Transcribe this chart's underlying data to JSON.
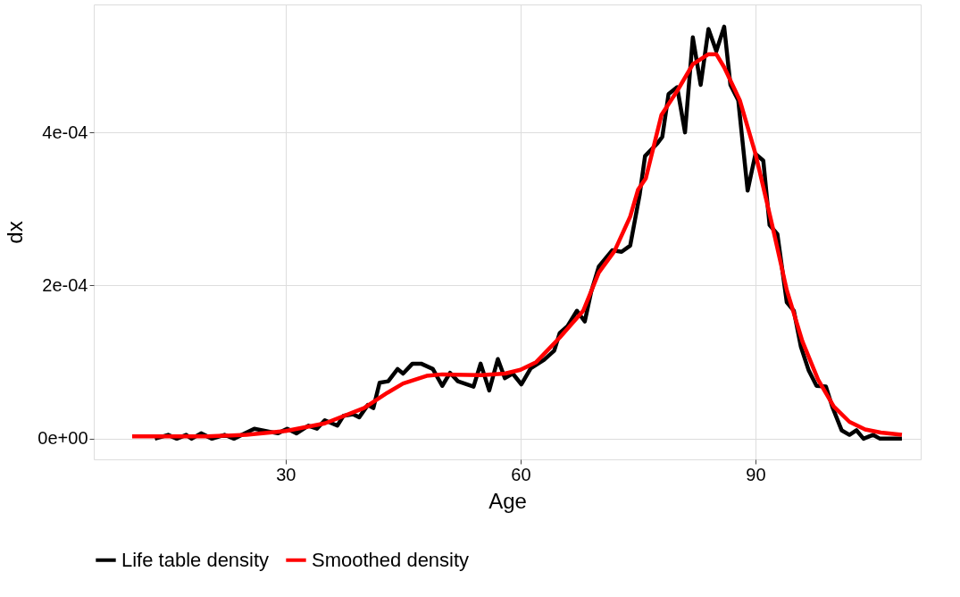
{
  "chart_data": {
    "type": "line",
    "xlabel": "Age",
    "ylabel": "dx",
    "xlim": [
      5.5,
      111.1
    ],
    "xticks": [
      30,
      60,
      90
    ],
    "ylim": [
      -2.7e-05,
      0.000567
    ],
    "yticks": [
      {
        "value": 0,
        "label": "0e+00"
      },
      {
        "value": 0.0002,
        "label": "2e-04"
      },
      {
        "value": 0.0004,
        "label": "4e-04"
      }
    ],
    "grid": true,
    "legend": "bottom",
    "line_style": "solid",
    "marker": "none",
    "series": [
      {
        "name": "Life table density",
        "color": "#000000",
        "x": [
          13.3,
          15,
          16.1,
          17.3,
          18,
          19.2,
          20.6,
          22.2,
          23.4,
          26,
          29,
          30.2,
          31.4,
          32.9,
          34,
          35,
          36.6,
          37.4,
          38.6,
          39.4,
          40.5,
          41.2,
          42,
          43.1,
          44.3,
          45,
          46.2,
          47.3,
          48.8,
          50,
          51,
          52,
          54,
          54.9,
          56,
          57.1,
          58,
          59,
          60.1,
          61.3,
          63,
          64.3,
          65,
          66,
          67.2,
          68.2,
          69,
          70,
          71.7,
          72.9,
          74,
          75.2,
          75.9,
          77.5,
          78.1,
          78.9,
          80,
          81,
          82,
          83,
          84,
          85,
          86,
          86.8,
          87.8,
          89,
          90,
          91,
          91.8,
          92.8,
          94,
          94.9,
          95.8,
          96.8,
          97.8,
          99,
          99.8,
          101,
          102,
          102.9,
          103.8,
          105,
          105.9,
          108.7
        ],
        "values": [
          0,
          5e-06,
          0,
          5e-06,
          0,
          7e-06,
          0,
          5e-06,
          0,
          1.3e-05,
          7e-06,
          1.3e-05,
          7e-06,
          1.7e-05,
          1.3e-05,
          2.4e-05,
          1.7e-05,
          3e-05,
          3.2e-05,
          2.8e-05,
          4.4e-05,
          4e-05,
          7.3e-05,
          7.5e-05,
          9.1e-05,
          8.5e-05,
          9.8e-05,
          9.8e-05,
          9.1e-05,
          6.9e-05,
          8.6e-05,
          7.5e-05,
          6.8e-05,
          9.8e-05,
          6.3e-05,
          0.000104,
          7.9e-05,
          8.5e-05,
          7.1e-05,
          9.2e-05,
          0.000103,
          0.000115,
          0.000138,
          0.000147,
          0.000167,
          0.000153,
          0.000191,
          0.000225,
          0.000246,
          0.000244,
          0.000252,
          0.000318,
          0.000369,
          0.000386,
          0.000394,
          0.00045,
          0.000459,
          0.0004,
          0.000524,
          0.000462,
          0.000535,
          0.000506,
          0.000538,
          0.000462,
          0.000442,
          0.000324,
          0.000372,
          0.000363,
          0.000279,
          0.000267,
          0.000178,
          0.000167,
          0.00012,
          8.9e-05,
          6.9e-05,
          6.8e-05,
          4.2e-05,
          1.1e-05,
          5e-06,
          1.1e-05,
          0,
          5e-06,
          0,
          0
        ]
      },
      {
        "name": "Smoothed density",
        "color": "#ff0000",
        "x": [
          10.4,
          20,
          25,
          30,
          35,
          40,
          43,
          45,
          48,
          50,
          55,
          58,
          60,
          62,
          65,
          68,
          70,
          72,
          74,
          75,
          76,
          78,
          80,
          82,
          84,
          85,
          86,
          88,
          90,
          92,
          94,
          96,
          98,
          100,
          102,
          104,
          106,
          108.7
        ],
        "values": [
          3e-06,
          3e-06,
          5e-06,
          1e-05,
          2e-05,
          4e-05,
          6e-05,
          7.2e-05,
          8.2e-05,
          8.4e-05,
          8.3e-05,
          8.5e-05,
          9e-05,
          0.0001,
          0.000132,
          0.000167,
          0.000217,
          0.000245,
          0.00029,
          0.000325,
          0.00034,
          0.000423,
          0.000454,
          0.000489,
          0.000502,
          0.000502,
          0.000485,
          0.000442,
          0.000372,
          0.000285,
          0.000194,
          0.000127,
          7.7e-05,
          4.2e-05,
          2.2e-05,
          1.2e-05,
          8e-06,
          5e-06
        ]
      }
    ]
  }
}
